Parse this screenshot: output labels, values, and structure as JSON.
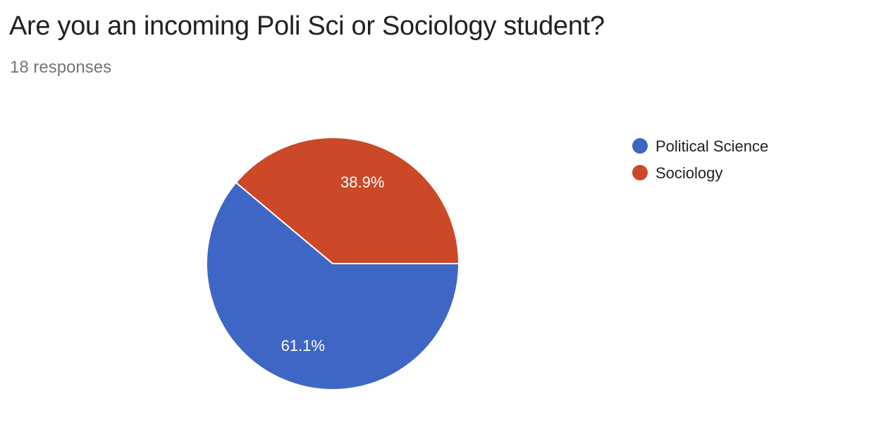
{
  "question": {
    "title": "Are you an incoming Poli Sci or Sociology student?",
    "responses": "18 responses"
  },
  "chart_data": {
    "type": "pie",
    "title": "Are you an incoming Poli Sci or Sociology student?",
    "categories": [
      "Political Science",
      "Sociology"
    ],
    "values": [
      61.1,
      38.9
    ],
    "labels": [
      "61.1%",
      "38.9%"
    ],
    "colors": [
      "#4066c5",
      "#cb4828"
    ],
    "legend_position": "right"
  }
}
